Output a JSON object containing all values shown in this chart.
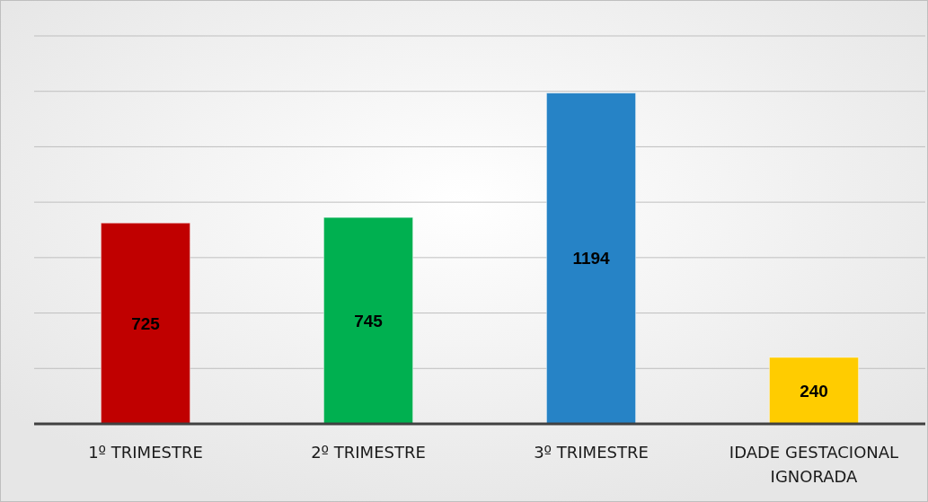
{
  "chart_data": {
    "type": "bar",
    "categories": [
      "1º TRIMESTRE",
      "2º TRIMESTRE",
      "3º TRIMESTRE",
      "IDADE GESTACIONAL IGNORADA"
    ],
    "values": [
      725,
      745,
      1194,
      240
    ],
    "colors": [
      "#c00000",
      "#00b050",
      "#2683c6",
      "#ffcc00"
    ],
    "ylim": [
      0,
      1400
    ],
    "yticks": [
      {
        "value": 0,
        "label": null
      },
      {
        "value": 200,
        "label": null
      },
      {
        "value": 400,
        "label": null
      },
      {
        "value": 600,
        "label": null
      },
      {
        "value": 800,
        "label": null
      },
      {
        "value": 1000,
        "label": null
      },
      {
        "value": 1200,
        "label": null
      },
      {
        "value": 1400,
        "label": null
      }
    ],
    "grid": "y",
    "data_labels": true,
    "tick_labels": "x"
  }
}
